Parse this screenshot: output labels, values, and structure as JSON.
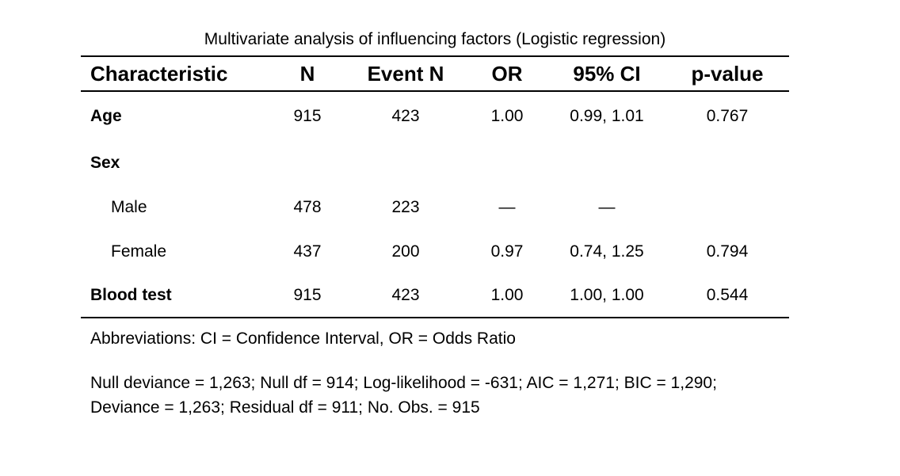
{
  "chart_data": {
    "type": "table",
    "title": "Multivariate analysis of influencing factors (Logistic regression)",
    "columns": [
      "Characteristic",
      "N",
      "Event N",
      "OR",
      "95% CI",
      "p-value"
    ],
    "rows": [
      {
        "label": "Age",
        "style": "bold",
        "n": "915",
        "event_n": "423",
        "or": "1.00",
        "ci": "0.99, 1.01",
        "p": "0.767"
      },
      {
        "label": "Sex",
        "style": "bold",
        "n": "",
        "event_n": "",
        "or": "",
        "ci": "",
        "p": ""
      },
      {
        "label": "Male",
        "style": "indent",
        "n": "478",
        "event_n": "223",
        "or": "—",
        "ci": "—",
        "p": ""
      },
      {
        "label": "Female",
        "style": "indent",
        "n": "437",
        "event_n": "200",
        "or": "0.97",
        "ci": "0.74, 1.25",
        "p": "0.794"
      },
      {
        "label": "Blood test",
        "style": "bold",
        "n": "915",
        "event_n": "423",
        "or": "1.00",
        "ci": "1.00, 1.00",
        "p": "0.544"
      }
    ],
    "footnotes": [
      "Abbreviations: CI = Confidence Interval, OR = Odds Ratio",
      "Null deviance = 1,263; Null df = 914; Log-likelihood = -631; AIC = 1,271; BIC = 1,290; Deviance = 1,263; Residual df = 911; No. Obs. = 915"
    ]
  }
}
